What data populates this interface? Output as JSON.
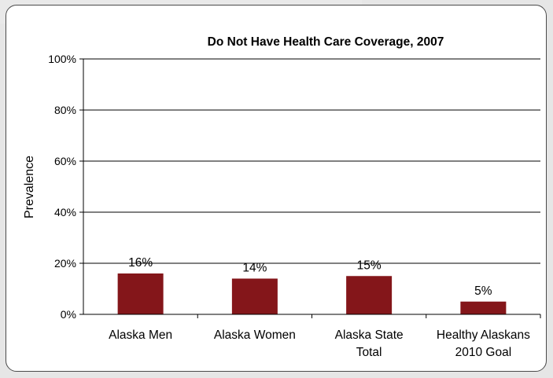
{
  "chart_data": {
    "type": "bar",
    "title": "Do Not Have Health Care Coverage, 2007",
    "ylabel": "Prevalence",
    "xlabel": "",
    "categories": [
      [
        "Alaska Men"
      ],
      [
        "Alaska Women"
      ],
      [
        "Alaska State",
        "Total"
      ],
      [
        "Healthy Alaskans",
        "2010 Goal"
      ]
    ],
    "values": [
      16,
      14,
      15,
      5
    ],
    "value_labels": [
      "16%",
      "14%",
      "15%",
      "5%"
    ],
    "ylim": [
      0,
      100
    ],
    "yticks": [
      0,
      20,
      40,
      60,
      80,
      100
    ],
    "ytick_labels": [
      "0%",
      "20%",
      "40%",
      "60%",
      "80%",
      "100%"
    ],
    "grid": true,
    "bar_color": "#84161a"
  }
}
